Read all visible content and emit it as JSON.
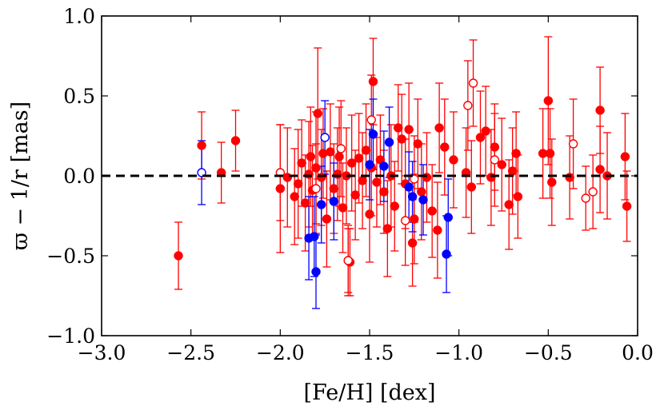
{
  "chart_data": {
    "type": "scatter",
    "xlabel": "[Fe/H] [dex]",
    "ylabel": "ϖ − 1/r [mas]",
    "xlim": [
      -3.0,
      0.0
    ],
    "ylim": [
      -1.0,
      1.0
    ],
    "xticks": [
      -3.0,
      -2.5,
      -2.0,
      -1.5,
      -1.0,
      -0.5,
      0.0
    ],
    "xtick_labels": [
      "−3.0",
      "−2.5",
      "−2.0",
      "−1.5",
      "−1.0",
      "−0.5",
      "0.0"
    ],
    "yticks": [
      -1.0,
      -0.5,
      0.0,
      0.5,
      1.0
    ],
    "ytick_labels": [
      "−1.0",
      "−0.5",
      "0.0",
      "0.5",
      "1.0"
    ],
    "reference_line": {
      "y": 0.0,
      "style": "dashed",
      "color": "#000000"
    },
    "grid": false,
    "legend": "none",
    "series": [
      {
        "color": "#ff0000",
        "marker": "filled-circle",
        "points": [
          {
            "x": -2.57,
            "y": -0.5,
            "err": 0.21
          },
          {
            "x": -2.44,
            "y": 0.19,
            "err": 0.21
          },
          {
            "x": -2.33,
            "y": 0.02,
            "err": 0.19
          },
          {
            "x": -2.25,
            "y": 0.22,
            "err": 0.19
          },
          {
            "x": -2.0,
            "y": -0.08,
            "err": 0.4
          },
          {
            "x": -1.96,
            "y": -0.01,
            "err": 0.31
          },
          {
            "x": -1.92,
            "y": -0.13,
            "err": 0.3
          },
          {
            "x": -1.9,
            "y": -0.05,
            "err": 0.34
          },
          {
            "x": -1.88,
            "y": 0.08,
            "err": 0.27
          },
          {
            "x": -1.86,
            "y": -0.17,
            "err": 0.3
          },
          {
            "x": -1.84,
            "y": 0.01,
            "err": 0.33
          },
          {
            "x": -1.83,
            "y": 0.12,
            "err": 0.31
          },
          {
            "x": -1.82,
            "y": -0.09,
            "err": 0.28
          },
          {
            "x": -1.8,
            "y": 0.05,
            "err": 0.35
          },
          {
            "x": -1.79,
            "y": 0.39,
            "err": 0.41
          },
          {
            "x": -1.77,
            "y": -0.01,
            "err": 0.3
          },
          {
            "x": -1.76,
            "y": 0.14,
            "err": 0.28
          },
          {
            "x": -1.74,
            "y": -0.27,
            "err": 0.3
          },
          {
            "x": -1.72,
            "y": 0.15,
            "err": 0.3
          },
          {
            "x": -1.7,
            "y": -0.08,
            "err": 0.28
          },
          {
            "x": -1.68,
            "y": 0.01,
            "err": 0.29
          },
          {
            "x": -1.67,
            "y": 0.12,
            "err": 0.31
          },
          {
            "x": -1.65,
            "y": -0.2,
            "err": 0.28
          },
          {
            "x": -1.63,
            "y": 0.0,
            "err": 0.3
          },
          {
            "x": -1.62,
            "y": -0.53,
            "err": 0.22
          },
          {
            "x": -1.61,
            "y": -0.54,
            "err": 0.21
          },
          {
            "x": -1.6,
            "y": 0.08,
            "err": 0.3
          },
          {
            "x": -1.58,
            "y": -0.12,
            "err": 0.28
          },
          {
            "x": -1.56,
            "y": 0.11,
            "err": 0.28
          },
          {
            "x": -1.54,
            "y": -0.03,
            "err": 0.3
          },
          {
            "x": -1.52,
            "y": 0.16,
            "err": 0.29
          },
          {
            "x": -1.5,
            "y": -0.24,
            "err": 0.3
          },
          {
            "x": -1.49,
            "y": 0.05,
            "err": 0.3
          },
          {
            "x": -1.48,
            "y": 0.59,
            "err": 0.27
          },
          {
            "x": -1.46,
            "y": -0.04,
            "err": 0.28
          },
          {
            "x": -1.44,
            "y": 0.1,
            "err": 0.28
          },
          {
            "x": -1.42,
            "y": -0.1,
            "err": 0.26
          },
          {
            "x": -1.4,
            "y": -0.33,
            "err": 0.3
          },
          {
            "x": -1.38,
            "y": 0.0,
            "err": 0.32
          },
          {
            "x": -1.36,
            "y": -0.19,
            "err": 0.28
          },
          {
            "x": -1.34,
            "y": 0.3,
            "err": 0.27
          },
          {
            "x": -1.32,
            "y": 0.23,
            "err": 0.28
          },
          {
            "x": -1.3,
            "y": -0.05,
            "err": 0.28
          },
          {
            "x": -1.28,
            "y": 0.29,
            "err": 0.29
          },
          {
            "x": -1.26,
            "y": -0.42,
            "err": 0.27
          },
          {
            "x": -1.25,
            "y": -0.27,
            "err": 0.28
          },
          {
            "x": -1.23,
            "y": 0.2,
            "err": 0.28
          },
          {
            "x": -1.21,
            "y": -0.1,
            "err": 0.3
          },
          {
            "x": -1.18,
            "y": -0.01,
            "err": 0.28
          },
          {
            "x": -1.15,
            "y": -0.22,
            "err": 0.29
          },
          {
            "x": -1.12,
            "y": -0.34,
            "err": 0.3
          },
          {
            "x": -1.11,
            "y": 0.3,
            "err": 0.28
          },
          {
            "x": -1.08,
            "y": 0.18,
            "err": 0.3
          },
          {
            "x": -1.03,
            "y": 0.1,
            "err": 0.3
          },
          {
            "x": -0.96,
            "y": 0.02,
            "err": 0.28
          },
          {
            "x": -0.93,
            "y": -0.07,
            "err": 0.29
          },
          {
            "x": -0.88,
            "y": 0.24,
            "err": 0.29
          },
          {
            "x": -0.85,
            "y": 0.28,
            "err": 0.28
          },
          {
            "x": -0.82,
            "y": -0.01,
            "err": 0.3
          },
          {
            "x": -0.8,
            "y": 0.18,
            "err": 0.27
          },
          {
            "x": -0.76,
            "y": 0.07,
            "err": 0.29
          },
          {
            "x": -0.72,
            "y": -0.18,
            "err": 0.28
          },
          {
            "x": -0.7,
            "y": 0.03,
            "err": 0.27
          },
          {
            "x": -0.68,
            "y": 0.14,
            "err": 0.26
          },
          {
            "x": -0.67,
            "y": -0.13,
            "err": 0.26
          },
          {
            "x": -0.53,
            "y": 0.14,
            "err": 0.28
          },
          {
            "x": -0.5,
            "y": 0.47,
            "err": 0.4
          },
          {
            "x": -0.49,
            "y": 0.14,
            "err": 0.28
          },
          {
            "x": -0.48,
            "y": -0.04,
            "err": 0.27
          },
          {
            "x": -0.38,
            "y": -0.01,
            "err": 0.26
          },
          {
            "x": -0.21,
            "y": 0.41,
            "err": 0.27
          },
          {
            "x": -0.21,
            "y": 0.04,
            "err": 0.27
          },
          {
            "x": -0.17,
            "y": 0.0,
            "err": 0.27
          },
          {
            "x": -0.07,
            "y": 0.12,
            "err": 0.27
          },
          {
            "x": -0.06,
            "y": -0.19,
            "err": 0.22
          }
        ]
      },
      {
        "color": "#ff0000",
        "marker": "open-circle",
        "points": [
          {
            "x": -2.0,
            "y": 0.02,
            "err": 0.3
          },
          {
            "x": -1.8,
            "y": -0.08,
            "err": 0.28
          },
          {
            "x": -1.66,
            "y": 0.17,
            "err": 0.3
          },
          {
            "x": -1.62,
            "y": -0.53,
            "err": 0.2
          },
          {
            "x": -1.49,
            "y": 0.35,
            "err": 0.28
          },
          {
            "x": -1.3,
            "y": -0.28,
            "err": 0.28
          },
          {
            "x": -1.25,
            "y": -0.02,
            "err": 0.27
          },
          {
            "x": -0.95,
            "y": 0.44,
            "err": 0.28
          },
          {
            "x": -0.92,
            "y": 0.58,
            "err": 0.27
          },
          {
            "x": -0.8,
            "y": 0.1,
            "err": 0.29
          },
          {
            "x": -0.36,
            "y": 0.2,
            "err": 0.28
          },
          {
            "x": -0.29,
            "y": -0.14,
            "err": 0.2
          },
          {
            "x": -0.25,
            "y": -0.1,
            "err": 0.23
          }
        ]
      },
      {
        "color": "#0000ff",
        "marker": "filled-circle",
        "points": [
          {
            "x": -1.84,
            "y": -0.39,
            "err": 0.26
          },
          {
            "x": -1.81,
            "y": -0.38,
            "err": 0.25
          },
          {
            "x": -1.8,
            "y": -0.6,
            "err": 0.23
          },
          {
            "x": -1.77,
            "y": -0.18,
            "err": 0.24
          },
          {
            "x": -1.7,
            "y": -0.16,
            "err": 0.24
          },
          {
            "x": -1.5,
            "y": 0.07,
            "err": 0.22
          },
          {
            "x": -1.48,
            "y": 0.26,
            "err": 0.22
          },
          {
            "x": -1.42,
            "y": 0.06,
            "err": 0.22
          },
          {
            "x": -1.39,
            "y": 0.21,
            "err": 0.22
          },
          {
            "x": -1.28,
            "y": -0.07,
            "err": 0.22
          },
          {
            "x": -1.26,
            "y": -0.13,
            "err": 0.22
          },
          {
            "x": -1.2,
            "y": -0.15,
            "err": 0.22
          },
          {
            "x": -1.07,
            "y": -0.49,
            "err": 0.24
          },
          {
            "x": -1.06,
            "y": -0.26,
            "err": 0.24
          }
        ]
      },
      {
        "color": "#0000ff",
        "marker": "open-circle",
        "points": [
          {
            "x": -2.44,
            "y": 0.02,
            "err": 0.2
          },
          {
            "x": -1.75,
            "y": 0.24,
            "err": 0.23
          }
        ]
      }
    ]
  }
}
